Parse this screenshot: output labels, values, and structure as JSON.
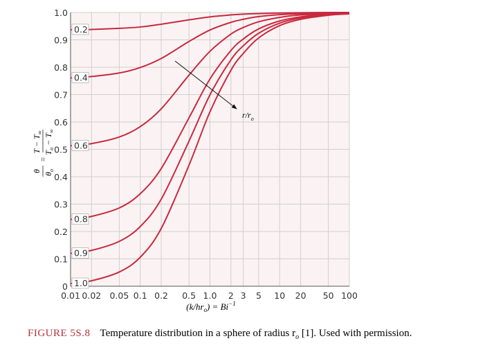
{
  "chart_data": {
    "type": "line",
    "x": [
      0.01,
      0.02,
      0.05,
      0.1,
      0.2,
      0.5,
      1,
      2,
      3,
      5,
      10,
      20,
      50,
      100
    ],
    "series": [
      {
        "name": "0.2",
        "color": "#c9283e",
        "values": [
          0.937,
          0.938,
          0.942,
          0.947,
          0.957,
          0.973,
          0.984,
          0.991,
          0.994,
          0.996,
          0.998,
          0.999,
          1.0,
          1.0
        ]
      },
      {
        "name": "0.4",
        "color": "#c9283e",
        "values": [
          0.761,
          0.766,
          0.779,
          0.799,
          0.832,
          0.894,
          0.936,
          0.964,
          0.975,
          0.985,
          0.992,
          0.996,
          0.998,
          0.999
        ]
      },
      {
        "name": "0.6",
        "color": "#c9283e",
        "values": [
          0.513,
          0.521,
          0.545,
          0.583,
          0.648,
          0.771,
          0.858,
          0.921,
          0.945,
          0.966,
          0.982,
          0.991,
          0.996,
          0.998
        ]
      },
      {
        "name": "0.8",
        "color": "#c9283e",
        "values": [
          0.244,
          0.255,
          0.286,
          0.338,
          0.43,
          0.615,
          0.757,
          0.861,
          0.903,
          0.94,
          0.969,
          0.984,
          0.994,
          0.997
        ]
      },
      {
        "name": "0.9",
        "color": "#c9283e",
        "values": [
          0.12,
          0.131,
          0.164,
          0.218,
          0.318,
          0.53,
          0.699,
          0.827,
          0.878,
          0.924,
          0.961,
          0.98,
          0.992,
          0.996
        ]
      },
      {
        "name": "1.0",
        "color": "#c9283e",
        "values": [
          0.01,
          0.02,
          0.052,
          0.106,
          0.211,
          0.442,
          0.637,
          0.789,
          0.85,
          0.907,
          0.952,
          0.975,
          0.99,
          0.995
        ]
      }
    ],
    "xlim": [
      0.01,
      100
    ],
    "ylim": [
      0,
      1
    ],
    "log_x": true,
    "grid": true,
    "xticks": [
      0.01,
      0.02,
      0.05,
      0.1,
      0.2,
      0.5,
      {
        "value": 1,
        "label": "1.0"
      },
      2,
      3,
      5,
      10,
      20,
      50,
      100
    ],
    "yticks": [
      0,
      0.1,
      0.2,
      0.3,
      0.4,
      0.5,
      0.6,
      0.7,
      0.8,
      0.9,
      {
        "value": 1,
        "label": "1.0"
      }
    ],
    "x_label": [
      "(k/hr",
      "o",
      ") = Bi",
      "−1"
    ],
    "y_label": [
      "θ",
      "θ",
      "o",
      "=",
      "T − T",
      "∞",
      "T",
      "o",
      " − T",
      "∞"
    ],
    "annotation": [
      "r/r",
      "o"
    ],
    "caption": [
      "FIGURE 5S.8",
      "Temperature distribution in a sphere of radius r",
      "o",
      " [1]. Used with permission."
    ]
  }
}
